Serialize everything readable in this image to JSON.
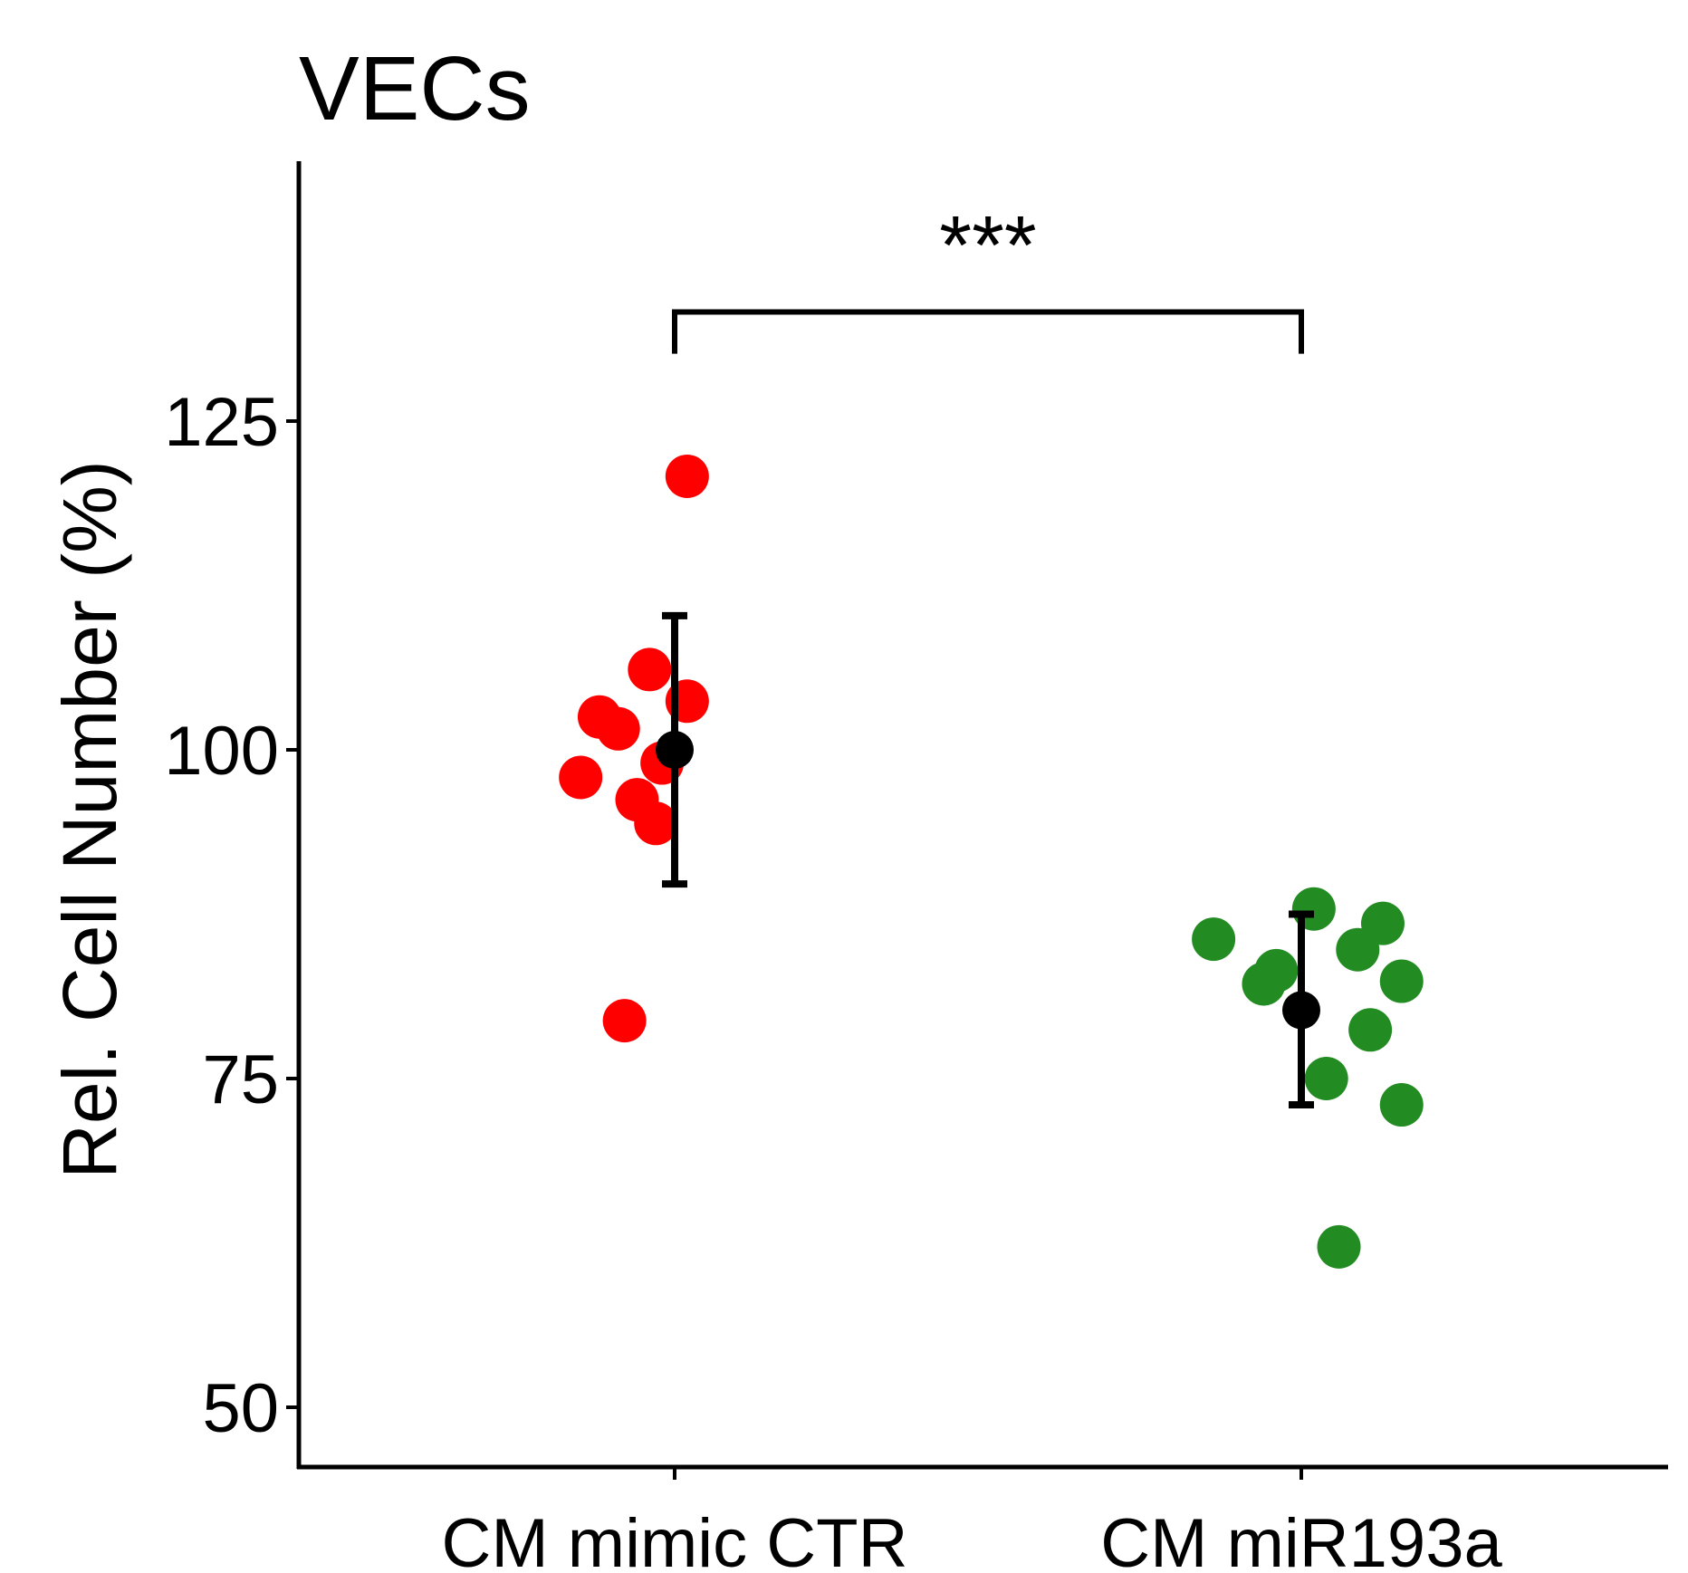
{
  "chart_data": {
    "type": "scatter",
    "title": "VECs",
    "ylabel": "Rel. Cell Number (%)",
    "xlabel": "",
    "ylim": [
      45,
      155
    ],
    "yticks": [
      50,
      75,
      100,
      125
    ],
    "categories": [
      "CM mimic CTR",
      "CM miR193a"
    ],
    "grid": false,
    "legend": "none",
    "groups": [
      {
        "category": "CM mimic CTR",
        "color": "#ff0000",
        "points": [
          {
            "offset": 0.02,
            "y": 120.8
          },
          {
            "offset": -0.04,
            "y": 106.1
          },
          {
            "offset": 0.02,
            "y": 103.7
          },
          {
            "offset": -0.12,
            "y": 102.5
          },
          {
            "offset": -0.09,
            "y": 101.6
          },
          {
            "offset": -0.02,
            "y": 99.0
          },
          {
            "offset": -0.15,
            "y": 97.9
          },
          {
            "offset": -0.06,
            "y": 96.2
          },
          {
            "offset": -0.03,
            "y": 94.4
          },
          {
            "offset": -0.08,
            "y": 79.4
          }
        ],
        "mean": 100.0,
        "error_low": 89.8,
        "error_high": 110.2
      },
      {
        "category": "CM miR193a",
        "color": "#228b22",
        "points": [
          {
            "offset": 0.02,
            "y": 87.9
          },
          {
            "offset": 0.13,
            "y": 86.8
          },
          {
            "offset": -0.14,
            "y": 85.6
          },
          {
            "offset": 0.09,
            "y": 84.8
          },
          {
            "offset": -0.04,
            "y": 83.2
          },
          {
            "offset": -0.06,
            "y": 82.2
          },
          {
            "offset": 0.16,
            "y": 82.4
          },
          {
            "offset": 0.11,
            "y": 78.7
          },
          {
            "offset": 0.04,
            "y": 75.0
          },
          {
            "offset": 0.16,
            "y": 73.0
          },
          {
            "offset": 0.06,
            "y": 62.2
          }
        ],
        "mean": 80.2,
        "error_low": 73.0,
        "error_high": 87.5
      }
    ],
    "significance": {
      "label": "***",
      "between": [
        "CM mimic CTR",
        "CM miR193a"
      ],
      "bracket_y": 133.3,
      "tick_bottom_y": 131.5
    }
  }
}
